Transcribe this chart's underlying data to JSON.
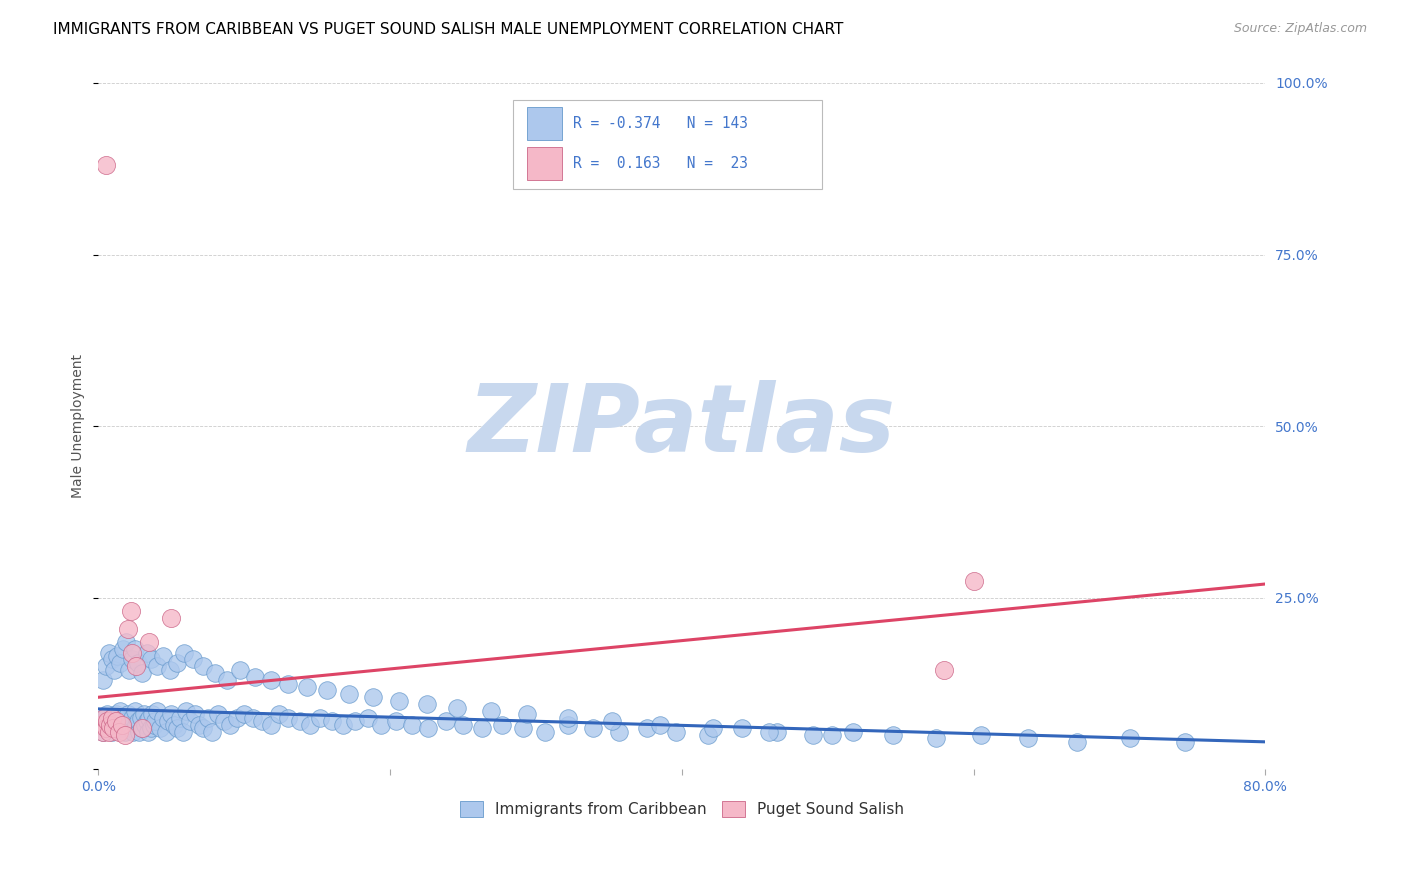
{
  "title": "IMMIGRANTS FROM CARIBBEAN VS PUGET SOUND SALISH MALE UNEMPLOYMENT CORRELATION CHART",
  "source": "Source: ZipAtlas.com",
  "ylabel": "Male Unemployment",
  "xlim": [
    0.0,
    0.8
  ],
  "ylim": [
    0.0,
    1.0
  ],
  "blue_R": -0.374,
  "blue_N": 143,
  "pink_R": 0.163,
  "pink_N": 23,
  "blue_color": "#adc8ed",
  "blue_edge_color": "#6699cc",
  "blue_line_color": "#3366bb",
  "pink_color": "#f5b8c8",
  "pink_edge_color": "#cc6688",
  "pink_line_color": "#dd4466",
  "blue_scatter_x": [
    0.001,
    0.002,
    0.003,
    0.004,
    0.005,
    0.006,
    0.007,
    0.008,
    0.009,
    0.01,
    0.011,
    0.012,
    0.013,
    0.014,
    0.015,
    0.016,
    0.017,
    0.018,
    0.019,
    0.02,
    0.021,
    0.022,
    0.023,
    0.024,
    0.025,
    0.026,
    0.027,
    0.028,
    0.029,
    0.03,
    0.031,
    0.032,
    0.033,
    0.034,
    0.035,
    0.036,
    0.037,
    0.038,
    0.039,
    0.04,
    0.042,
    0.044,
    0.046,
    0.048,
    0.05,
    0.052,
    0.054,
    0.056,
    0.058,
    0.06,
    0.063,
    0.066,
    0.069,
    0.072,
    0.075,
    0.078,
    0.082,
    0.086,
    0.09,
    0.095,
    0.1,
    0.106,
    0.112,
    0.118,
    0.124,
    0.13,
    0.138,
    0.145,
    0.152,
    0.16,
    0.168,
    0.176,
    0.185,
    0.194,
    0.204,
    0.215,
    0.226,
    0.238,
    0.25,
    0.263,
    0.277,
    0.291,
    0.306,
    0.322,
    0.339,
    0.357,
    0.376,
    0.396,
    0.418,
    0.441,
    0.465,
    0.49,
    0.517,
    0.545,
    0.574,
    0.605,
    0.637,
    0.671,
    0.707,
    0.745,
    0.003,
    0.005,
    0.007,
    0.009,
    0.011,
    0.013,
    0.015,
    0.017,
    0.019,
    0.021,
    0.023,
    0.025,
    0.027,
    0.03,
    0.033,
    0.036,
    0.04,
    0.044,
    0.049,
    0.054,
    0.059,
    0.065,
    0.072,
    0.08,
    0.088,
    0.097,
    0.107,
    0.118,
    0.13,
    0.143,
    0.157,
    0.172,
    0.188,
    0.206,
    0.225,
    0.246,
    0.269,
    0.294,
    0.322,
    0.352,
    0.385,
    0.421,
    0.46,
    0.503
  ],
  "blue_scatter_y": [
    0.065,
    0.07,
    0.055,
    0.075,
    0.06,
    0.08,
    0.065,
    0.07,
    0.055,
    0.075,
    0.06,
    0.08,
    0.065,
    0.07,
    0.085,
    0.06,
    0.075,
    0.055,
    0.07,
    0.08,
    0.065,
    0.06,
    0.075,
    0.055,
    0.085,
    0.065,
    0.07,
    0.055,
    0.075,
    0.06,
    0.08,
    0.065,
    0.07,
    0.055,
    0.075,
    0.06,
    0.08,
    0.065,
    0.07,
    0.085,
    0.06,
    0.075,
    0.055,
    0.07,
    0.08,
    0.065,
    0.06,
    0.075,
    0.055,
    0.085,
    0.07,
    0.08,
    0.065,
    0.06,
    0.075,
    0.055,
    0.08,
    0.07,
    0.065,
    0.075,
    0.08,
    0.075,
    0.07,
    0.065,
    0.08,
    0.075,
    0.07,
    0.065,
    0.075,
    0.07,
    0.065,
    0.07,
    0.075,
    0.065,
    0.07,
    0.065,
    0.06,
    0.07,
    0.065,
    0.06,
    0.065,
    0.06,
    0.055,
    0.065,
    0.06,
    0.055,
    0.06,
    0.055,
    0.05,
    0.06,
    0.055,
    0.05,
    0.055,
    0.05,
    0.045,
    0.05,
    0.045,
    0.04,
    0.045,
    0.04,
    0.13,
    0.15,
    0.17,
    0.16,
    0.145,
    0.165,
    0.155,
    0.175,
    0.185,
    0.145,
    0.16,
    0.175,
    0.155,
    0.14,
    0.17,
    0.16,
    0.15,
    0.165,
    0.145,
    0.155,
    0.17,
    0.16,
    0.15,
    0.14,
    0.13,
    0.145,
    0.135,
    0.13,
    0.125,
    0.12,
    0.115,
    0.11,
    0.105,
    0.1,
    0.095,
    0.09,
    0.085,
    0.08,
    0.075,
    0.07,
    0.065,
    0.06,
    0.055,
    0.05
  ],
  "pink_scatter_x": [
    0.002,
    0.003,
    0.004,
    0.005,
    0.006,
    0.007,
    0.008,
    0.009,
    0.01,
    0.012,
    0.014,
    0.016,
    0.018,
    0.02,
    0.023,
    0.026,
    0.03,
    0.035,
    0.05,
    0.6,
    0.58,
    0.005,
    0.022
  ],
  "pink_scatter_y": [
    0.065,
    0.055,
    0.075,
    0.06,
    0.07,
    0.055,
    0.065,
    0.075,
    0.06,
    0.07,
    0.055,
    0.065,
    0.05,
    0.205,
    0.17,
    0.15,
    0.06,
    0.185,
    0.22,
    0.275,
    0.145,
    0.88,
    0.23
  ],
  "blue_trend_start_y": 0.088,
  "blue_trend_end_y": 0.04,
  "pink_trend_start_y": 0.105,
  "pink_trend_end_y": 0.27,
  "watermark_text": "ZIPatlas",
  "watermark_color": "#c8d8ee",
  "legend_text_color": "#4477cc",
  "tick_color": "#4477cc",
  "ylabel_color": "#555555",
  "title_fontsize": 11,
  "tick_fontsize": 10,
  "ylabel_fontsize": 10,
  "source_fontsize": 9
}
